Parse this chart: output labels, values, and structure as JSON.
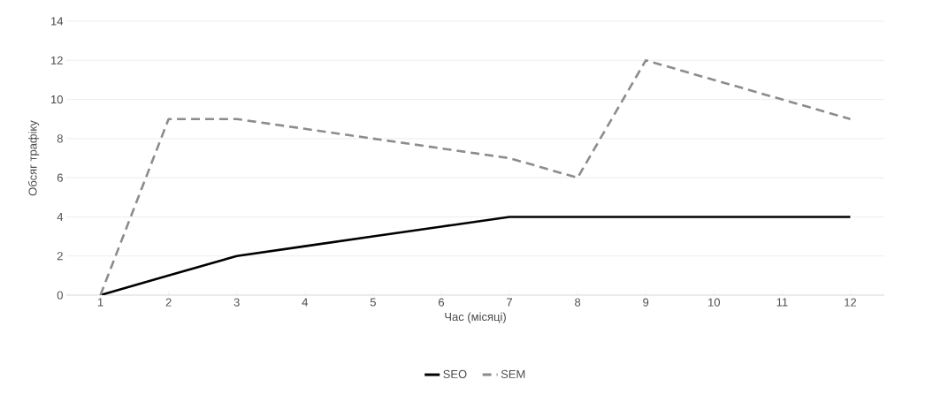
{
  "chart_data": {
    "type": "line",
    "xlabel": "Час (місяці)",
    "ylabel": "Обсяг трафіку",
    "categories": [
      "1",
      "2",
      "3",
      "4",
      "5",
      "6",
      "7",
      "8",
      "9",
      "10",
      "11",
      "12"
    ],
    "series": [
      {
        "name": "SEO",
        "color": "#000000",
        "line_style": "solid",
        "values": [
          0,
          1,
          2,
          2.5,
          3,
          3.5,
          4,
          4,
          4,
          4,
          4,
          4
        ]
      },
      {
        "name": "SEM",
        "color": "#8c8c8c",
        "line_style": "dashed",
        "values": [
          0,
          9,
          9,
          8.5,
          8,
          7.5,
          7,
          6,
          12,
          11,
          10,
          9
        ]
      }
    ],
    "ylim": [
      0,
      14
    ],
    "yticks": [
      0,
      2,
      4,
      6,
      8,
      10,
      12,
      14
    ],
    "grid": "y",
    "legend": "bottom",
    "marker": "none"
  }
}
